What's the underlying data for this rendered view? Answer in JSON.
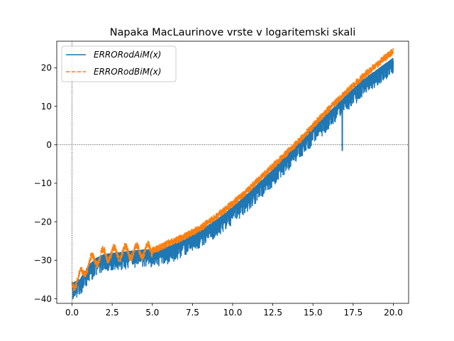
{
  "chart_data": {
    "type": "line",
    "title": "Napaka MacLaurinove vrste v logaritemski skali",
    "xlabel": "",
    "ylabel": "",
    "xlim": [
      -0.95,
      20.95
    ],
    "ylim": [
      -41.2,
      26.9
    ],
    "x_ticks": [
      0.0,
      2.5,
      5.0,
      7.5,
      10.0,
      12.5,
      15.0,
      17.5,
      20.0
    ],
    "x_tick_labels": [
      "0.0",
      "2.5",
      "5.0",
      "7.5",
      "10.0",
      "12.5",
      "15.0",
      "17.5",
      "20.0"
    ],
    "y_ticks": [
      -40,
      -30,
      -20,
      -10,
      0,
      10,
      20
    ],
    "y_tick_labels": [
      "−40",
      "−30",
      "−20",
      "−10",
      "0",
      "10",
      "20"
    ],
    "reference_lines": {
      "y": 0,
      "x": 0,
      "style": "dotted"
    },
    "legend_position": "upper-left",
    "series": [
      {
        "name": "ERRORodAiM(x)",
        "color": "#1f77b4",
        "style": "solid",
        "x": [
          0.0,
          0.5,
          1.0,
          1.5,
          2.0,
          2.5,
          3.0,
          3.5,
          4.0,
          4.5,
          5.0,
          5.5,
          6.0,
          7.0,
          8.0,
          9.0,
          10.0,
          11.0,
          12.0,
          13.0,
          14.0,
          15.0,
          16.0,
          17.0,
          18.0,
          19.0,
          20.0
        ],
        "y": [
          -37,
          -36,
          -32.5,
          -30.5,
          -29.5,
          -29.2,
          -29,
          -28.7,
          -28.5,
          -28.3,
          -28.3,
          -28,
          -27.5,
          -25.5,
          -23.2,
          -20.5,
          -17.2,
          -13.5,
          -9.5,
          -5.2,
          -1.2,
          3.5,
          7.5,
          11.5,
          15.5,
          18.5,
          21.5
        ],
        "noise_amplitude": 4.5
      },
      {
        "name": "ERRORodBiM(x)",
        "color": "#ff7f0e",
        "style": "dashed",
        "x": [
          0.0,
          0.5,
          1.0,
          1.5,
          2.0,
          2.5,
          3.0,
          3.5,
          4.0,
          4.5,
          5.0,
          5.5,
          6.0,
          7.0,
          8.0,
          9.0,
          10.0,
          11.0,
          12.0,
          13.0,
          14.0,
          15.0,
          16.0,
          17.0,
          18.0,
          19.0,
          20.0
        ],
        "y": [
          -36,
          -34.5,
          -31,
          -29.5,
          -28.5,
          -28.2,
          -28,
          -27.8,
          -27.6,
          -27.4,
          -27.3,
          -26.6,
          -25.5,
          -23.8,
          -21.5,
          -18.5,
          -15.2,
          -11.5,
          -7.5,
          -3.5,
          0.5,
          5,
          9.5,
          13.5,
          17.5,
          21,
          24.5
        ],
        "noise_amplitude": 3.0
      }
    ]
  }
}
